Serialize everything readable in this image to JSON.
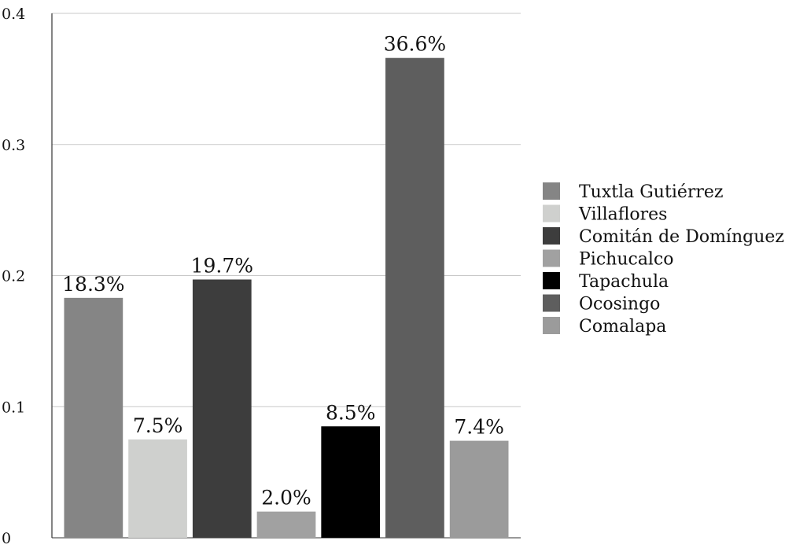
{
  "chart_data": {
    "type": "bar",
    "title": "",
    "xlabel": "",
    "ylabel": "",
    "ylim": [
      0,
      0.4
    ],
    "yticks": [
      0,
      0.1,
      0.2,
      0.3,
      0.4
    ],
    "ytick_labels": [
      "0",
      "0.1",
      "0.2",
      "0.3",
      "0.4"
    ],
    "grid": true,
    "legend_position": "right",
    "categories": [
      "Tuxtla Gutiérrez",
      "Villaflores",
      "Comitán de Domínguez",
      "Pichucalco",
      "Tapachula",
      "Ocosingo",
      "Comalapa"
    ],
    "values": [
      0.183,
      0.075,
      0.197,
      0.02,
      0.085,
      0.366,
      0.074
    ],
    "data_labels": [
      "18.3%",
      "7.5%",
      "19.7%",
      "2.0%",
      "8.5%",
      "36.6%",
      "7.4%"
    ],
    "colors": [
      "#858585",
      "#cfd0ce",
      "#3d3d3d",
      "#a1a1a1",
      "#000000",
      "#5e5e5e",
      "#9b9b9b"
    ],
    "legend": [
      "Tuxtla Gutiérrez",
      "Villaflores",
      "Comitán de Domínguez",
      "Pichucalco",
      "Tapachula",
      "Ocosingo",
      "Comalapa"
    ]
  }
}
